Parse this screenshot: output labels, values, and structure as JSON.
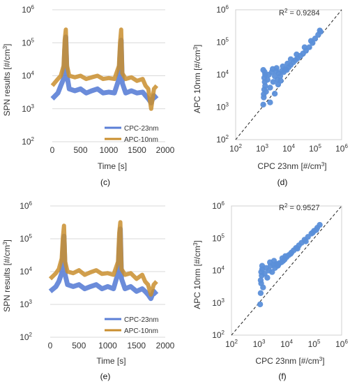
{
  "chart_data": [
    {
      "id": "c",
      "type": "line",
      "panel_label": "(c)",
      "xlabel": "Time [s]",
      "ylabel": "SPN results [#/cm³]",
      "xlim": [
        0,
        2000
      ],
      "xticks": [
        0,
        500,
        1000,
        1500,
        2000
      ],
      "ylim_log10": [
        2,
        6
      ],
      "ytick_exponents": [
        2,
        3,
        4,
        5,
        6
      ],
      "y_scale": "log",
      "grid": true,
      "legend_position": "bottom-right",
      "series": [
        {
          "name": "CPC-23nm",
          "color": "#5b7fd6",
          "x": [
            0,
            100,
            150,
            200,
            220,
            240,
            260,
            300,
            400,
            500,
            600,
            700,
            800,
            900,
            1000,
            1100,
            1180,
            1200,
            1220,
            1240,
            1300,
            1400,
            1500,
            1600,
            1650,
            1700,
            1750,
            1800,
            1850
          ],
          "y": [
            2000,
            3000,
            5000,
            8000,
            60000,
            150000,
            10000,
            4000,
            3500,
            4000,
            3000,
            3500,
            4000,
            3000,
            3200,
            3000,
            8000,
            50000,
            120000,
            6000,
            3000,
            3500,
            3000,
            3200,
            2500,
            2000,
            1500,
            2500,
            2000
          ]
        },
        {
          "name": "APC-10nm",
          "color": "#c98e2e",
          "x": [
            0,
            100,
            150,
            200,
            220,
            240,
            260,
            300,
            400,
            500,
            600,
            700,
            800,
            900,
            1000,
            1100,
            1180,
            1200,
            1220,
            1240,
            1300,
            1400,
            1500,
            1600,
            1650,
            1700,
            1750,
            1800,
            1850
          ],
          "y": [
            5000,
            8000,
            10000,
            20000,
            120000,
            250000,
            20000,
            10000,
            9000,
            10000,
            8000,
            9000,
            10000,
            8000,
            8500,
            8000,
            20000,
            100000,
            250000,
            12000,
            8000,
            9000,
            7000,
            8000,
            5000,
            4000,
            1000,
            4000,
            5000
          ]
        }
      ]
    },
    {
      "id": "d",
      "type": "scatter",
      "panel_label": "(d)",
      "xlabel": "CPC 23nm [#/cm³]",
      "ylabel": "APC 10nm [#/cm³]",
      "x_scale": "log",
      "y_scale": "log",
      "xlim_log10": [
        2,
        6
      ],
      "ylim_log10": [
        2,
        6
      ],
      "tick_exponents": [
        2,
        3,
        4,
        5,
        6
      ],
      "annotation": "R² = 0.9284",
      "reference_line": "y = x (dashed)",
      "color": "#5b8fd9",
      "x": [
        1100,
        1150,
        1200,
        1250,
        1300,
        1100,
        1200,
        1300,
        1150,
        1250,
        1400,
        1600,
        1800,
        2000,
        2300,
        2600,
        3000,
        3400,
        3800,
        4200,
        4800,
        5500,
        6500,
        7500,
        8500,
        10000,
        12000,
        15000,
        18000,
        22000,
        28000,
        35000,
        45000,
        60000,
        80000,
        100000,
        130000,
        160000,
        2000,
        3000,
        4000,
        5000,
        3500,
        2500,
        6000,
        9000,
        12000,
        20000,
        40000,
        70000,
        150000
      ],
      "y": [
        1200,
        2000,
        3500,
        6000,
        10000,
        14000,
        8000,
        4500,
        2500,
        12000,
        3000,
        7000,
        10000,
        4000,
        12000,
        6000,
        9000,
        13000,
        7000,
        11000,
        9000,
        13000,
        12000,
        15000,
        14000,
        17000,
        20000,
        24000,
        28000,
        32000,
        38000,
        45000,
        55000,
        70000,
        95000,
        130000,
        170000,
        210000,
        1400,
        2600,
        5000,
        6500,
        16000,
        15000,
        18000,
        22000,
        30000,
        42000,
        70000,
        110000,
        230000
      ]
    },
    {
      "id": "e",
      "type": "line",
      "panel_label": "(e)",
      "xlabel": "Time [s]",
      "ylabel": "SPN results  [#/cm³]",
      "xlim": [
        0,
        2000
      ],
      "xticks": [
        0,
        500,
        1000,
        1500,
        2000
      ],
      "ylim_log10": [
        2,
        6
      ],
      "ytick_exponents": [
        2,
        3,
        4,
        5,
        6
      ],
      "y_scale": "log",
      "grid": true,
      "legend_position": "bottom-right",
      "series": [
        {
          "name": "CPC-23nm",
          "color": "#5b7fd6",
          "x": [
            0,
            100,
            150,
            200,
            220,
            240,
            260,
            300,
            400,
            500,
            600,
            700,
            800,
            900,
            1000,
            1100,
            1180,
            1200,
            1220,
            1240,
            1300,
            1400,
            1500,
            1600,
            1650,
            1700,
            1750,
            1800,
            1850
          ],
          "y": [
            2500,
            3500,
            5000,
            9000,
            40000,
            120000,
            8000,
            4000,
            3500,
            4000,
            3000,
            3500,
            4000,
            3000,
            3500,
            3000,
            9000,
            60000,
            200000,
            6000,
            3000,
            3500,
            2500,
            3000,
            2500,
            2000,
            1500,
            2500,
            2000
          ]
        },
        {
          "name": "APC-10nm",
          "color": "#c98e2e",
          "x": [
            0,
            100,
            150,
            200,
            220,
            240,
            260,
            300,
            400,
            500,
            600,
            700,
            800,
            900,
            1000,
            1100,
            1180,
            1200,
            1220,
            1240,
            1300,
            1400,
            1500,
            1600,
            1650,
            1700,
            1750,
            1800,
            1850
          ],
          "y": [
            6000,
            9000,
            12000,
            25000,
            110000,
            250000,
            20000,
            10000,
            9000,
            11000,
            8000,
            9500,
            11000,
            8500,
            9000,
            8000,
            20000,
            150000,
            320000,
            12000,
            8000,
            9000,
            6000,
            8000,
            5000,
            4000,
            2000,
            4000,
            5000
          ]
        }
      ]
    },
    {
      "id": "f",
      "type": "scatter",
      "panel_label": "(f)",
      "xlabel": "CPC 23nm [#/cm³]",
      "ylabel": "APC 10nm [#/cm³]",
      "x_scale": "log",
      "y_scale": "log",
      "xlim_log10": [
        2,
        6
      ],
      "ylim_log10": [
        2,
        6
      ],
      "tick_exponents": [
        2,
        3,
        4,
        5,
        6
      ],
      "annotation": "R² = 0.9527",
      "reference_line": "y = x (dashed)",
      "color": "#5b8fd9",
      "x": [
        1100,
        1150,
        1200,
        1250,
        1300,
        1150,
        1200,
        1300,
        1400,
        1600,
        1800,
        2000,
        2300,
        2600,
        3000,
        3400,
        3800,
        4200,
        4800,
        5500,
        6500,
        7500,
        8500,
        10000,
        12000,
        15000,
        18000,
        22000,
        28000,
        35000,
        45000,
        60000,
        80000,
        100000,
        130000,
        160000,
        2500,
        3500,
        5000,
        7000,
        9000,
        14000,
        25000,
        50000,
        90000,
        120000
      ],
      "y": [
        900,
        2000,
        4000,
        7000,
        11000,
        5000,
        9000,
        14000,
        3000,
        8000,
        12000,
        6000,
        10000,
        14000,
        9000,
        15000,
        12000,
        16000,
        14000,
        17000,
        18000,
        20000,
        22000,
        26000,
        30000,
        36000,
        42000,
        50000,
        60000,
        72000,
        90000,
        110000,
        140000,
        170000,
        210000,
        260000,
        18000,
        20000,
        15000,
        24000,
        28000,
        33000,
        48000,
        80000,
        150000,
        180000
      ]
    }
  ]
}
